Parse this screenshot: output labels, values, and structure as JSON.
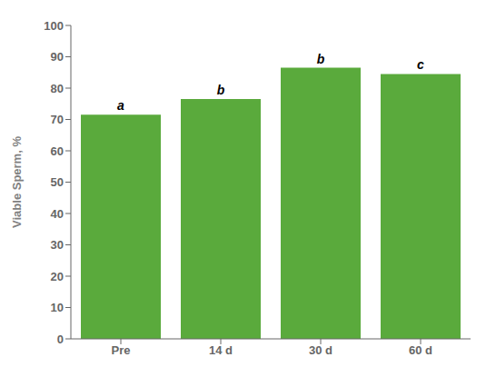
{
  "chart_data": {
    "type": "bar",
    "categories": [
      "Pre",
      "14 d",
      "30 d",
      "60 d"
    ],
    "values": [
      71.5,
      76.5,
      86.5,
      84.5
    ],
    "annotations": [
      "a",
      "b",
      "b",
      "c"
    ],
    "color": "#5aaa3c",
    "ylabel": "Viable Sperm, %",
    "ylim": [
      0,
      100
    ],
    "yticks": [
      0,
      10,
      20,
      30,
      40,
      50,
      60,
      70,
      80,
      90,
      100
    ],
    "grid": false
  }
}
